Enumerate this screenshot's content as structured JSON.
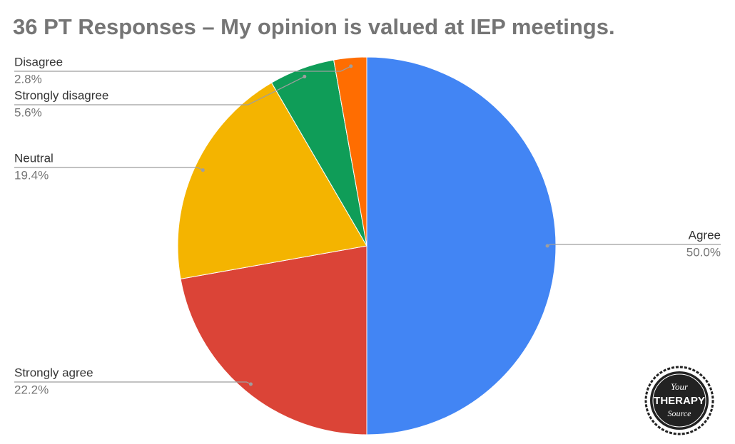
{
  "chart_data": {
    "type": "pie",
    "title": "36 PT Responses – My opinion is valued at IEP meetings.",
    "categories": [
      "Agree",
      "Strongly agree",
      "Neutral",
      "Strongly disagree",
      "Disagree"
    ],
    "values": [
      50.0,
      22.2,
      19.4,
      5.6,
      2.8
    ],
    "value_labels": [
      "50.0%",
      "22.2%",
      "19.4%",
      "5.6%",
      "2.8%"
    ],
    "colors": [
      "#4285f4",
      "#db4437",
      "#f4b400",
      "#0f9d58",
      "#ff6d01"
    ]
  },
  "logo": {
    "top": "Your",
    "middle": "THERAPY",
    "bottom": "Source"
  }
}
